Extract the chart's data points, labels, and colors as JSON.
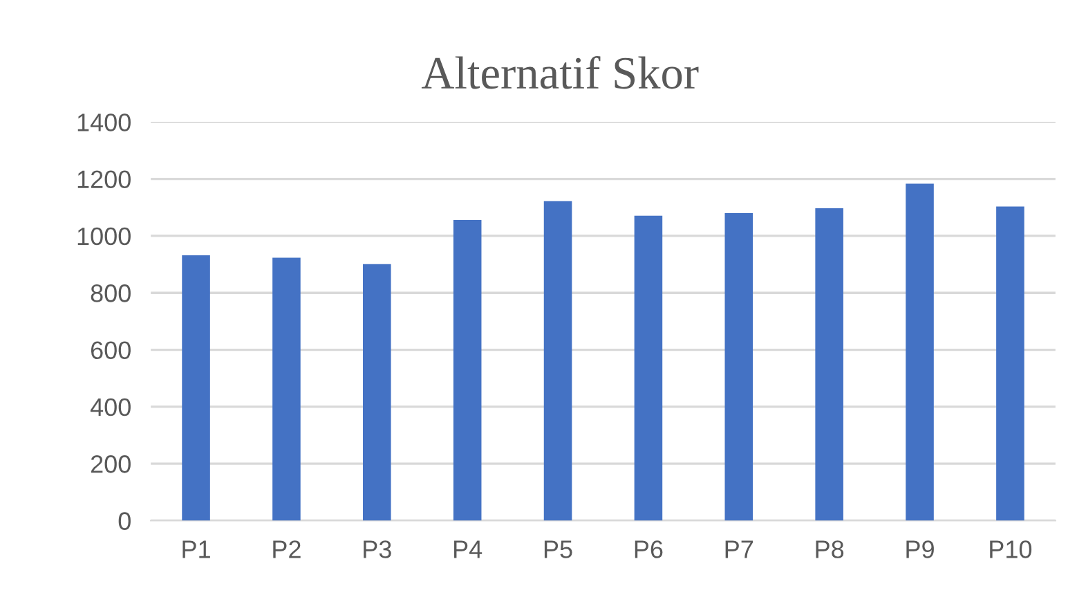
{
  "chart_data": {
    "type": "bar",
    "title": "Alternatif Skor",
    "categories": [
      "P1",
      "P2",
      "P3",
      "P4",
      "P5",
      "P6",
      "P7",
      "P8",
      "P9",
      "P10"
    ],
    "values": [
      932,
      923,
      901,
      1056,
      1122,
      1071,
      1080,
      1097,
      1183,
      1103
    ],
    "color": "#4472c4",
    "ylim": [
      0,
      1400
    ],
    "yticks": [
      0,
      200,
      400,
      600,
      800,
      1000,
      1200,
      1400
    ],
    "grid": "y"
  }
}
